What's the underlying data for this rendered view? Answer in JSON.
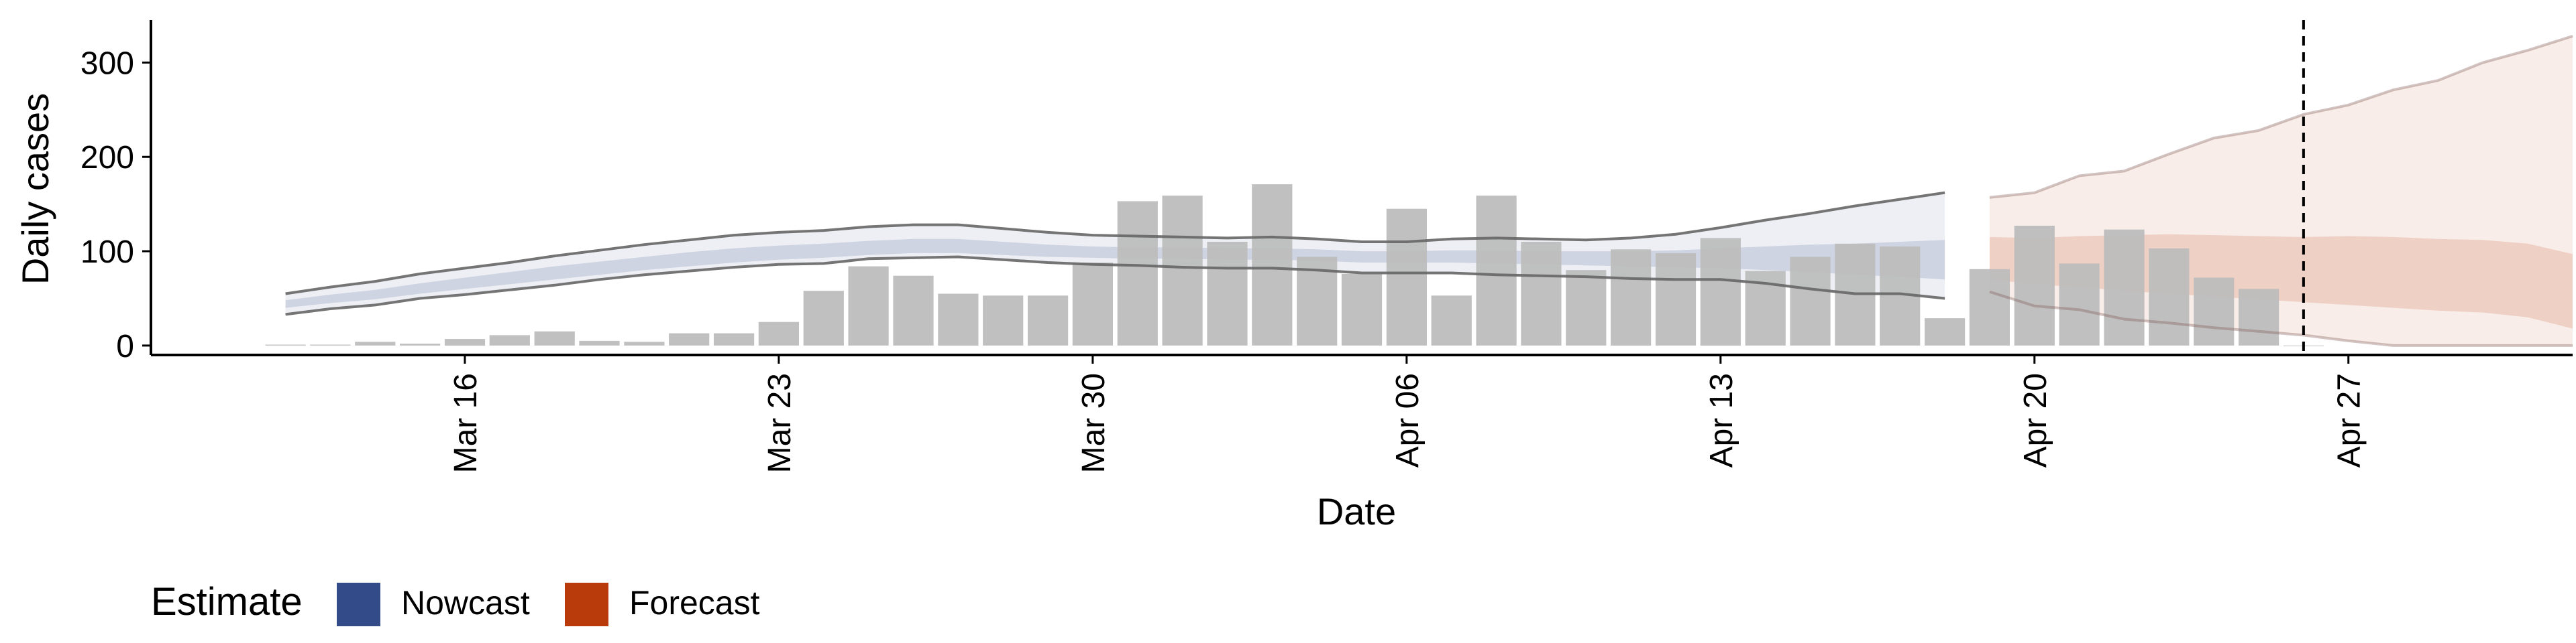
{
  "chart_data": {
    "type": "bar",
    "xlabel": "Date",
    "ylabel": "Daily cases",
    "ylim": [
      -10,
      345
    ],
    "xlim": [
      "2020-03-09",
      "2020-05-02"
    ],
    "y_ticks": [
      0,
      100,
      200,
      300
    ],
    "x_ticks": [
      {
        "date": "2020-03-16",
        "label": "Mar 16"
      },
      {
        "date": "2020-03-23",
        "label": "Mar 23"
      },
      {
        "date": "2020-03-30",
        "label": "Mar 30"
      },
      {
        "date": "2020-04-06",
        "label": "Apr 06"
      },
      {
        "date": "2020-04-13",
        "label": "Apr 13"
      },
      {
        "date": "2020-04-20",
        "label": "Apr 20"
      },
      {
        "date": "2020-04-27",
        "label": "Apr 27"
      }
    ],
    "reference_line_date": "2020-04-26",
    "grid": false,
    "legend": {
      "position": "bottom-left",
      "title": "Estimate",
      "entries": [
        {
          "label": "Nowcast",
          "color": "#344b8a"
        },
        {
          "label": "Forecast",
          "color": "#b93b0c"
        }
      ]
    },
    "bars": {
      "color": "#bdbdbd",
      "dates": [
        "2020-03-12",
        "2020-03-13",
        "2020-03-14",
        "2020-03-15",
        "2020-03-16",
        "2020-03-17",
        "2020-03-18",
        "2020-03-19",
        "2020-03-20",
        "2020-03-21",
        "2020-03-22",
        "2020-03-23",
        "2020-03-24",
        "2020-03-25",
        "2020-03-26",
        "2020-03-27",
        "2020-03-28",
        "2020-03-29",
        "2020-03-30",
        "2020-03-31",
        "2020-04-01",
        "2020-04-02",
        "2020-04-03",
        "2020-04-04",
        "2020-04-05",
        "2020-04-06",
        "2020-04-07",
        "2020-04-08",
        "2020-04-09",
        "2020-04-10",
        "2020-04-11",
        "2020-04-12",
        "2020-04-13",
        "2020-04-14",
        "2020-04-15",
        "2020-04-16",
        "2020-04-17",
        "2020-04-18",
        "2020-04-19",
        "2020-04-20",
        "2020-04-21",
        "2020-04-22",
        "2020-04-23",
        "2020-04-24",
        "2020-04-25",
        "2020-04-26"
      ],
      "values": [
        1,
        1,
        4,
        2,
        7,
        11,
        15,
        5,
        4,
        13,
        13,
        25,
        58,
        84,
        74,
        55,
        53,
        53,
        88,
        153,
        159,
        110,
        171,
        94,
        76,
        145,
        53,
        159,
        110,
        80,
        102,
        98,
        114,
        79,
        94,
        108,
        105,
        29,
        81,
        127,
        87,
        123,
        103,
        72,
        60,
        0
      ]
    },
    "series": [
      {
        "name": "Nowcast",
        "color": "#344b8a",
        "dates": [
          "2020-03-12",
          "2020-03-13",
          "2020-03-14",
          "2020-03-15",
          "2020-03-16",
          "2020-03-17",
          "2020-03-18",
          "2020-03-19",
          "2020-03-20",
          "2020-03-21",
          "2020-03-22",
          "2020-03-23",
          "2020-03-24",
          "2020-03-25",
          "2020-03-26",
          "2020-03-27",
          "2020-03-28",
          "2020-03-29",
          "2020-03-30",
          "2020-03-31",
          "2020-04-01",
          "2020-04-02",
          "2020-04-03",
          "2020-04-04",
          "2020-04-05",
          "2020-04-06",
          "2020-04-07",
          "2020-04-08",
          "2020-04-09",
          "2020-04-10",
          "2020-04-11",
          "2020-04-12",
          "2020-04-13",
          "2020-04-14",
          "2020-04-15",
          "2020-04-16",
          "2020-04-17",
          "2020-04-18"
        ],
        "upper90": [
          55,
          62,
          68,
          76,
          82,
          88,
          95,
          101,
          107,
          112,
          117,
          120,
          122,
          126,
          128,
          128,
          124,
          120,
          117,
          116,
          115,
          114,
          115,
          113,
          110,
          110,
          113,
          114,
          113,
          112,
          114,
          118,
          125,
          133,
          140,
          148,
          155,
          162
        ],
        "upper50": [
          48,
          54,
          59,
          66,
          72,
          78,
          84,
          89,
          94,
          99,
          103,
          106,
          108,
          111,
          113,
          113,
          110,
          107,
          105,
          104,
          104,
          103,
          103,
          102,
          100,
          100,
          101,
          101,
          100,
          100,
          100,
          101,
          103,
          105,
          107,
          108,
          110,
          112
        ],
        "lower50": [
          40,
          45,
          49,
          55,
          60,
          65,
          70,
          75,
          80,
          84,
          88,
          91,
          93,
          96,
          98,
          98,
          96,
          94,
          93,
          92,
          92,
          91,
          91,
          90,
          88,
          88,
          88,
          87,
          86,
          85,
          84,
          83,
          82,
          80,
          78,
          75,
          73,
          70
        ],
        "lower90": [
          33,
          39,
          43,
          50,
          54,
          59,
          64,
          70,
          75,
          79,
          83,
          86,
          87,
          92,
          93,
          94,
          91,
          88,
          86,
          85,
          83,
          82,
          82,
          80,
          77,
          77,
          77,
          75,
          74,
          73,
          71,
          70,
          70,
          66,
          60,
          55,
          55,
          50
        ]
      },
      {
        "name": "Forecast",
        "color": "#b93b0c",
        "dates": [
          "2020-04-19",
          "2020-04-20",
          "2020-04-21",
          "2020-04-22",
          "2020-04-23",
          "2020-04-24",
          "2020-04-25",
          "2020-04-26",
          "2020-04-27",
          "2020-04-28",
          "2020-04-29",
          "2020-04-30",
          "2020-05-01",
          "2020-05-02"
        ],
        "upper90": [
          157,
          162,
          180,
          185,
          203,
          220,
          228,
          245,
          255,
          271,
          281,
          300,
          313,
          328
        ],
        "upper50": [
          115,
          114,
          116,
          117,
          118,
          117,
          116,
          115,
          116,
          115,
          113,
          112,
          108,
          97
        ],
        "lower50": [
          70,
          65,
          62,
          58,
          55,
          52,
          49,
          46,
          43,
          40,
          37,
          35,
          30,
          18
        ],
        "lower90": [
          57,
          42,
          38,
          28,
          24,
          19,
          15,
          11,
          5,
          0,
          0,
          0,
          0,
          0
        ]
      }
    ]
  }
}
